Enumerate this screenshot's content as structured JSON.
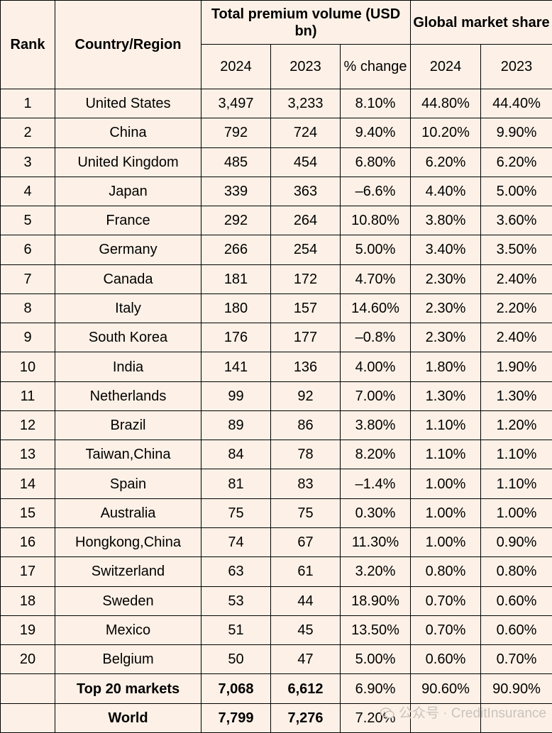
{
  "chart_data": {
    "type": "table",
    "headers": {
      "rank": "Rank",
      "country": "Country/Region",
      "volume_group": "Total premium volume (USD bn)",
      "share_group": "Global market share",
      "vol_2024": "2024",
      "vol_2023": "2023",
      "pct_change": "% change",
      "share_2024": "2024",
      "share_2023": "2023"
    },
    "rows": [
      {
        "rank": "1",
        "country": "United States",
        "vol_2024": "3,497",
        "vol_2023": "3,233",
        "change": "8.10%",
        "share_2024": "44.80%",
        "share_2023": "44.40%"
      },
      {
        "rank": "2",
        "country": "China",
        "vol_2024": "792",
        "vol_2023": "724",
        "change": "9.40%",
        "share_2024": "10.20%",
        "share_2023": "9.90%"
      },
      {
        "rank": "3",
        "country": "United Kingdom",
        "vol_2024": "485",
        "vol_2023": "454",
        "change": "6.80%",
        "share_2024": "6.20%",
        "share_2023": "6.20%"
      },
      {
        "rank": "4",
        "country": "Japan",
        "vol_2024": "339",
        "vol_2023": "363",
        "change": "–6.6%",
        "share_2024": "4.40%",
        "share_2023": "5.00%"
      },
      {
        "rank": "5",
        "country": "France",
        "vol_2024": "292",
        "vol_2023": "264",
        "change": "10.80%",
        "share_2024": "3.80%",
        "share_2023": "3.60%"
      },
      {
        "rank": "6",
        "country": "Germany",
        "vol_2024": "266",
        "vol_2023": "254",
        "change": "5.00%",
        "share_2024": "3.40%",
        "share_2023": "3.50%"
      },
      {
        "rank": "7",
        "country": "Canada",
        "vol_2024": "181",
        "vol_2023": "172",
        "change": "4.70%",
        "share_2024": "2.30%",
        "share_2023": "2.40%"
      },
      {
        "rank": "8",
        "country": "Italy",
        "vol_2024": "180",
        "vol_2023": "157",
        "change": "14.60%",
        "share_2024": "2.30%",
        "share_2023": "2.20%"
      },
      {
        "rank": "9",
        "country": "South Korea",
        "vol_2024": "176",
        "vol_2023": "177",
        "change": "–0.8%",
        "share_2024": "2.30%",
        "share_2023": "2.40%"
      },
      {
        "rank": "10",
        "country": "India",
        "vol_2024": "141",
        "vol_2023": "136",
        "change": "4.00%",
        "share_2024": "1.80%",
        "share_2023": "1.90%"
      },
      {
        "rank": "11",
        "country": "Netherlands",
        "vol_2024": "99",
        "vol_2023": "92",
        "change": "7.00%",
        "share_2024": "1.30%",
        "share_2023": "1.30%"
      },
      {
        "rank": "12",
        "country": "Brazil",
        "vol_2024": "89",
        "vol_2023": "86",
        "change": "3.80%",
        "share_2024": "1.10%",
        "share_2023": "1.20%"
      },
      {
        "rank": "13",
        "country": "Taiwan,China",
        "vol_2024": "84",
        "vol_2023": "78",
        "change": "8.20%",
        "share_2024": "1.10%",
        "share_2023": "1.10%"
      },
      {
        "rank": "14",
        "country": "Spain",
        "vol_2024": "81",
        "vol_2023": "83",
        "change": "–1.4%",
        "share_2024": "1.00%",
        "share_2023": "1.10%"
      },
      {
        "rank": "15",
        "country": "Australia",
        "vol_2024": "75",
        "vol_2023": "75",
        "change": "0.30%",
        "share_2024": "1.00%",
        "share_2023": "1.00%"
      },
      {
        "rank": "16",
        "country": "Hongkong,China",
        "vol_2024": "74",
        "vol_2023": "67",
        "change": "11.30%",
        "share_2024": "1.00%",
        "share_2023": "0.90%"
      },
      {
        "rank": "17",
        "country": "Switzerland",
        "vol_2024": "63",
        "vol_2023": "61",
        "change": "3.20%",
        "share_2024": "0.80%",
        "share_2023": "0.80%"
      },
      {
        "rank": "18",
        "country": "Sweden",
        "vol_2024": "53",
        "vol_2023": "44",
        "change": "18.90%",
        "share_2024": "0.70%",
        "share_2023": "0.60%"
      },
      {
        "rank": "19",
        "country": "Mexico",
        "vol_2024": "51",
        "vol_2023": "45",
        "change": "13.50%",
        "share_2024": "0.70%",
        "share_2023": "0.60%"
      },
      {
        "rank": "20",
        "country": "Belgium",
        "vol_2024": "50",
        "vol_2023": "47",
        "change": "5.00%",
        "share_2024": "0.60%",
        "share_2023": "0.70%"
      }
    ],
    "totals": [
      {
        "rank": "",
        "country": "Top 20 markets",
        "vol_2024": "7,068",
        "vol_2023": "6,612",
        "change": "6.90%",
        "share_2024": "90.60%",
        "share_2023": "90.90%"
      },
      {
        "rank": "",
        "country": "World",
        "vol_2024": "7,799",
        "vol_2023": "7,276",
        "change": "7.20%",
        "share_2024": "",
        "share_2023": ""
      }
    ]
  },
  "watermark": {
    "text": "公众号 · CreditInsurance",
    "icon": "wechat-icon"
  },
  "colors": {
    "background": "#fdf1e7",
    "border": "#000000",
    "watermark": "#c9c3bd"
  }
}
